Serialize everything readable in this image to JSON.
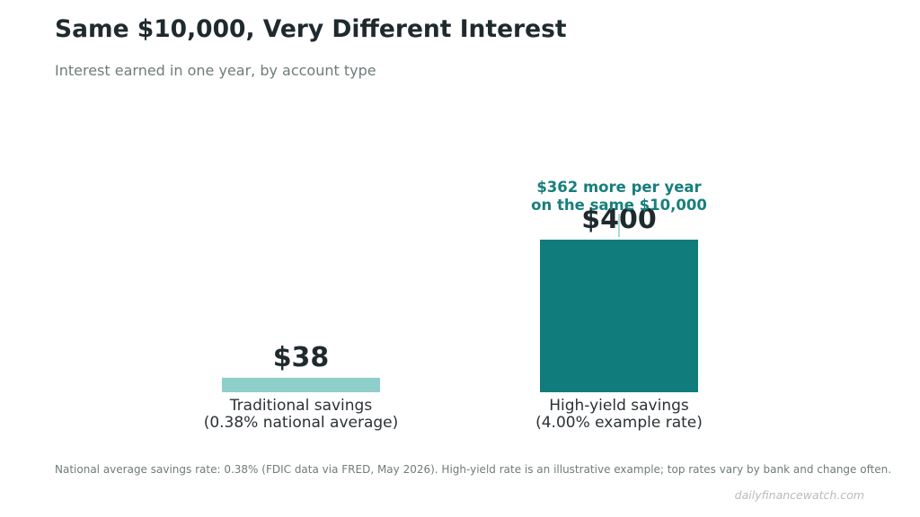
{
  "header": {
    "title": "Same $10,000, Very Different Interest",
    "subtitle": "Interest earned in one year, by account type"
  },
  "chart_data": {
    "type": "bar",
    "categories": [
      "Traditional savings\n(0.38% national average)",
      "High-yield savings\n(4.00% example rate)"
    ],
    "values": [
      38,
      400
    ],
    "value_labels": [
      "$38",
      "$400"
    ],
    "bar_colors": [
      "#8ecfc9",
      "#117c7c"
    ],
    "annotation": {
      "text": "$362 more per year\non the same $10,000",
      "color": "#177f7c",
      "target_category": "High-yield savings\n(4.00% example rate)"
    },
    "title": "Same $10,000, Very Different Interest",
    "subtitle": "Interest earned in one year, by account type",
    "xlabel": "",
    "ylabel": "",
    "ylim": [
      0,
      400
    ],
    "grid": false
  },
  "footer": {
    "note": "National average savings rate: 0.38% (FDIC data via FRED, May 2026). High-yield rate is an illustrative example; top rates vary by bank and change often.",
    "source": "dailyfinancewatch.com"
  },
  "colors": {
    "text_dark": "#1f2a2e",
    "text_muted": "#6f7b7b",
    "accent": "#117c7c"
  }
}
